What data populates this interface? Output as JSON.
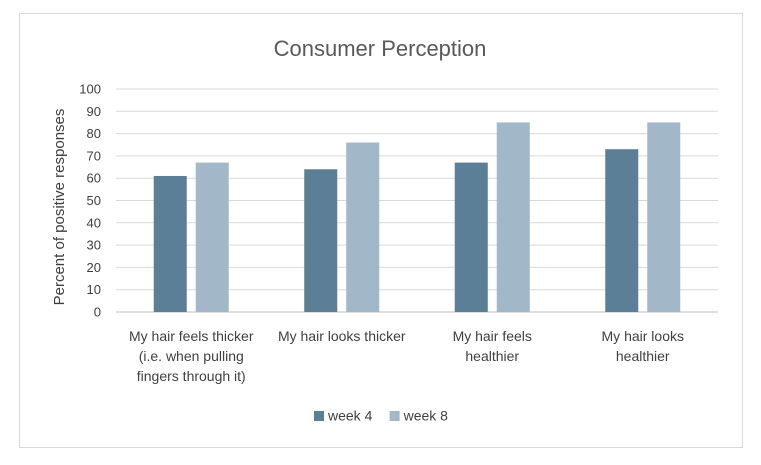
{
  "chart_data": {
    "type": "bar",
    "title": "Consumer Perception",
    "xlabel": "",
    "ylabel": "Percent of positive responses",
    "ylim": [
      0,
      100
    ],
    "yticks": [
      0,
      10,
      20,
      30,
      40,
      50,
      60,
      70,
      80,
      90,
      100
    ],
    "grid": true,
    "legend_position": "bottom",
    "categories": [
      [
        "My hair feels thicker",
        "(i.e. when pulling",
        "fingers through it)"
      ],
      [
        "My hair looks thicker"
      ],
      [
        "My hair feels",
        "healthier"
      ],
      [
        "My hair looks",
        "healthier"
      ]
    ],
    "series": [
      {
        "name": "week 4",
        "color": "#5b7f96",
        "values": [
          61,
          64,
          67,
          73
        ]
      },
      {
        "name": "week 8",
        "color": "#a2b8c8",
        "values": [
          67,
          76,
          85,
          85
        ]
      }
    ]
  }
}
